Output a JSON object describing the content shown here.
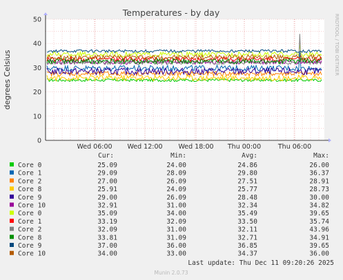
{
  "chart_data": {
    "type": "line",
    "title": "Temperatures - by day",
    "ylabel": "degrees Celsius",
    "ylim": [
      0,
      50
    ],
    "yticks": [
      "0",
      "10",
      "20",
      "30",
      "40",
      "50"
    ],
    "xticks": [
      "Wed 06:00",
      "Wed 12:00",
      "Wed 18:00",
      "Thu 00:00",
      "Thu 06:00"
    ],
    "grid": true,
    "side_label": "RRDTOOL / TOBI OETIKER",
    "legend_headers": {
      "cur": "Cur:",
      "min": "Min:",
      "avg": "Avg:",
      "max": "Max:"
    },
    "series": [
      {
        "name": "Core 0",
        "color": "#00cc00",
        "cur": "25.09",
        "min": "24.00",
        "avg": "24.86",
        "max": "26.00"
      },
      {
        "name": "Core 1",
        "color": "#0066b3",
        "cur": "29.09",
        "min": "28.09",
        "avg": "29.80",
        "max": "36.37"
      },
      {
        "name": "Core 2",
        "color": "#ff8000",
        "cur": "27.00",
        "min": "26.09",
        "avg": "27.51",
        "max": "28.91"
      },
      {
        "name": "Core 8",
        "color": "#ffcc00",
        "cur": "25.91",
        "min": "24.09",
        "avg": "25.77",
        "max": "28.73"
      },
      {
        "name": "Core 9",
        "color": "#330099",
        "cur": "29.00",
        "min": "26.09",
        "avg": "28.48",
        "max": "30.00"
      },
      {
        "name": "Core 10",
        "color": "#990099",
        "cur": "32.91",
        "min": "31.00",
        "avg": "32.34",
        "max": "34.82"
      },
      {
        "name": "Core 0",
        "color": "#ccff00",
        "cur": "35.09",
        "min": "34.00",
        "avg": "35.49",
        "max": "39.65"
      },
      {
        "name": "Core 1",
        "color": "#ff0000",
        "cur": "33.19",
        "min": "32.09",
        "avg": "33.50",
        "max": "35.74"
      },
      {
        "name": "Core 2",
        "color": "#808080",
        "cur": "32.09",
        "min": "31.00",
        "avg": "32.11",
        "max": "43.96"
      },
      {
        "name": "Core 8",
        "color": "#008f00",
        "cur": "33.81",
        "min": "31.09",
        "avg": "32.71",
        "max": "34.91"
      },
      {
        "name": "Core 9",
        "color": "#00487d",
        "cur": "37.00",
        "min": "36.00",
        "avg": "36.85",
        "max": "39.65"
      },
      {
        "name": "Core 10",
        "color": "#b35a00",
        "cur": "34.00",
        "min": "33.00",
        "avg": "34.37",
        "max": "36.00"
      }
    ]
  },
  "footer": {
    "last_update": "Last update: Thu Dec 11 09:20:26 2025",
    "version": "Munin 2.0.73"
  }
}
